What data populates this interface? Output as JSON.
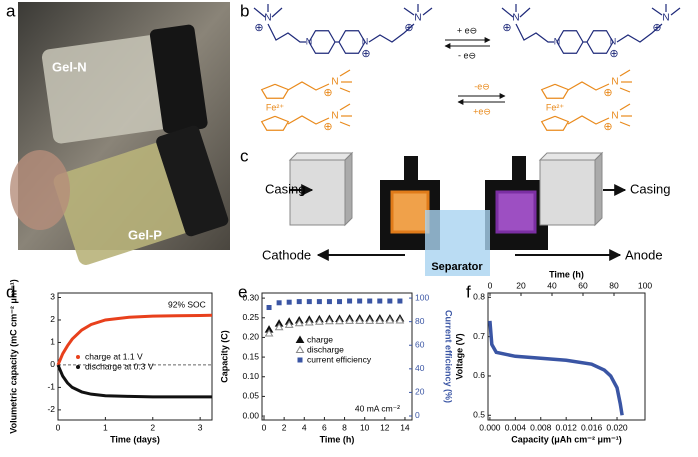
{
  "panel_labels": [
    "a",
    "b",
    "c",
    "d",
    "e",
    "f"
  ],
  "photo": {
    "labels": [
      "Gel-N",
      "Gel-P"
    ]
  },
  "scheme": {
    "atom": "N",
    "charge": "⊕",
    "iron": "Fe²⁺",
    "viologen_arrows": [
      "+ e⊖",
      "- e⊖"
    ],
    "ferrocene_arrows": [
      "-e⊖",
      "+e⊖"
    ]
  },
  "cell": {
    "casing_left": "Casing",
    "casing_right": "Casing",
    "cathode": "Cathode",
    "anode": "Anode",
    "separator": "Separator"
  },
  "chart_data": [
    {
      "type": "line",
      "x": [
        0,
        0.1,
        0.2,
        0.3,
        0.5,
        0.7,
        1,
        1.5,
        2,
        2.5,
        3,
        3.25
      ],
      "series": [
        {
          "name": "charge at 1.1 V",
          "color": "#e8401c",
          "values": [
            0,
            0.5,
            0.85,
            1.15,
            1.55,
            1.8,
            2.0,
            2.12,
            2.17,
            2.19,
            2.2,
            2.21
          ]
        },
        {
          "name": "discharge at 0.3 V",
          "color": "#111111",
          "values": [
            0,
            -0.5,
            -0.8,
            -1.0,
            -1.2,
            -1.3,
            -1.37,
            -1.4,
            -1.42,
            -1.42,
            -1.42,
            -1.42
          ]
        }
      ],
      "xlabel": "Time (days)",
      "ylabel": "Volumetric capacity (mC cm⁻² μm⁻¹)",
      "annotation": "92% SOC",
      "xlim": [
        0,
        3.25
      ],
      "ylim": [
        -2.45,
        3.2
      ],
      "xticks": [
        0,
        1,
        2,
        3
      ],
      "yticks": [
        -2,
        -1,
        0,
        1,
        2,
        3
      ],
      "zero_line": true
    },
    {
      "type": "scatter",
      "x": [
        0.5,
        1.5,
        2.5,
        3.5,
        4.5,
        5.5,
        6.5,
        7.5,
        8.5,
        9.5,
        10.5,
        11.5,
        12.5,
        13.5
      ],
      "series": [
        {
          "name": "charge",
          "color": "#111111",
          "marker": "triangle",
          "values": [
            0.22,
            0.235,
            0.24,
            0.243,
            0.245,
            0.246,
            0.247,
            0.247,
            0.248,
            0.248,
            0.248,
            0.248,
            0.248,
            0.248
          ]
        },
        {
          "name": "discharge",
          "color": "#888888",
          "marker": "triangle-open",
          "values": [
            0.21,
            0.226,
            0.232,
            0.236,
            0.238,
            0.24,
            0.241,
            0.241,
            0.242,
            0.242,
            0.242,
            0.242,
            0.243,
            0.243
          ]
        },
        {
          "name": "current efficiency",
          "color": "#3a55a4",
          "marker": "square",
          "axis": "y2",
          "values": [
            92,
            96,
            96.5,
            97,
            97,
            97,
            97,
            97,
            97.5,
            97.5,
            97.5,
            97.5,
            97.5,
            97.5
          ]
        }
      ],
      "xlabel": "Time (h)",
      "ylabel": "Capacity (C)",
      "y2label": "Current efficiency (%)",
      "annotation": "40 mA cm⁻²",
      "xlim": [
        -0.2,
        14.7
      ],
      "ylim": [
        -0.01,
        0.313
      ],
      "y2lim": [
        -3.4,
        104.3
      ],
      "xticks": [
        0,
        2,
        4,
        6,
        8,
        10,
        12,
        14
      ],
      "yticks": [
        {
          "value": 0,
          "label": "0.00"
        },
        0.05,
        {
          "value": 0.1,
          "label": "0.10"
        },
        0.15,
        {
          "value": 0.2,
          "label": "0.20"
        },
        0.25,
        {
          "value": 0.3,
          "label": "0.30"
        }
      ],
      "y2ticks": [
        0,
        20,
        40,
        60,
        80,
        100
      ]
    },
    {
      "type": "line",
      "x": [
        0,
        0.0003,
        0.001,
        0.004,
        0.008,
        0.012,
        0.016,
        0.018,
        0.019,
        0.02,
        0.0205,
        0.0208
      ],
      "series": [
        {
          "color": "#3a55a4",
          "values": [
            0.74,
            0.68,
            0.66,
            0.65,
            0.645,
            0.64,
            0.63,
            0.615,
            0.6,
            0.57,
            0.53,
            0.5
          ]
        }
      ],
      "xlabel": "Capacity (μAh cm⁻² μm⁻¹)",
      "x2label": "Time (h)",
      "ylabel": "Voltage (V)",
      "xlim": [
        -0.0003,
        0.0244
      ],
      "x2lim": [
        -1.3,
        100
      ],
      "ylim": [
        0.488,
        0.811
      ],
      "xticks": [
        {
          "value": 0,
          "label": "0.000"
        },
        {
          "value": 0.004,
          "label": "0.004"
        },
        {
          "value": 0.008,
          "label": "0.008"
        },
        {
          "value": 0.012,
          "label": "0.012"
        },
        {
          "value": 0.016,
          "label": "0.016"
        },
        {
          "value": 0.02,
          "label": "0.020"
        }
      ],
      "x2ticks": [
        0,
        20,
        40,
        60,
        80,
        100
      ],
      "yticks": [
        0.5,
        0.6,
        0.7,
        0.8
      ]
    }
  ]
}
